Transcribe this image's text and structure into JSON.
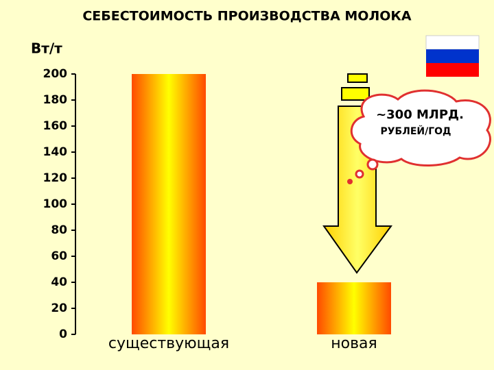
{
  "chart_data": {
    "type": "bar",
    "title": "СЕБЕСТОИМОСТЬ ПРОИЗВОДСТВА МОЛОКА",
    "y_label": "Вт/т",
    "categories": [
      "существующая",
      "новая"
    ],
    "values": [
      200,
      40
    ],
    "ylim": [
      0,
      200
    ],
    "yticks": [
      0,
      20,
      40,
      60,
      80,
      100,
      120,
      140,
      160,
      180,
      200
    ],
    "grid": false,
    "annotations": [
      "~300 МЛРД.",
      "РУБЛЕЙ/ГОД"
    ]
  }
}
